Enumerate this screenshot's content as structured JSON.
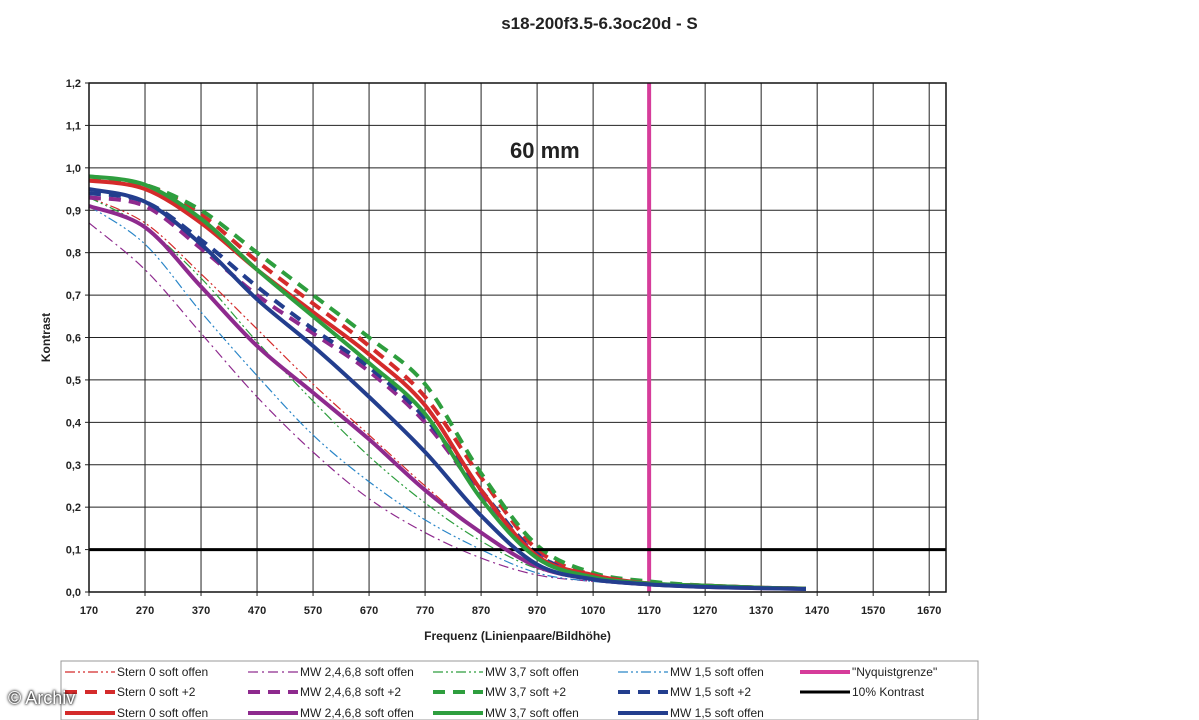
{
  "watermark": "© Archiv",
  "chart_data": {
    "type": "line",
    "title": "s18-200f3.5-6.3oc20d - S",
    "xlabel": "Frequenz (Linienpaare/Bildhöhe)",
    "ylabel": "Kontrast",
    "xlim": [
      170,
      1700
    ],
    "ylim": [
      0,
      1.2
    ],
    "xticks": [
      "170",
      "270",
      "370",
      "470",
      "570",
      "670",
      "770",
      "870",
      "970",
      "1070",
      "1170",
      "1270",
      "1370",
      "1470",
      "1570",
      "1670"
    ],
    "yticks": [
      "0,0",
      "0,1",
      "0,2",
      "0,3",
      "0,4",
      "0,5",
      "0,6",
      "0,7",
      "0,8",
      "0,9",
      "1,0",
      "1,1",
      "1,2"
    ],
    "grid": true,
    "annotation": "60 mm",
    "legend_position": "bottom",
    "series": [
      {
        "name": "Stern 0 soft offen",
        "color": "#d42b2b",
        "style": "dashdotdot",
        "width": 1.2,
        "x": [
          170,
          270,
          370,
          470,
          570,
          670,
          770,
          870,
          970,
          1070,
          1170,
          1270,
          1370,
          1450
        ],
        "y": [
          0.93,
          0.87,
          0.75,
          0.62,
          0.49,
          0.37,
          0.25,
          0.14,
          0.06,
          0.03,
          0.02,
          0.015,
          0.01,
          0.008
        ]
      },
      {
        "name": "MW 2,4,6,8 soft offen",
        "color": "#8e2a8e",
        "style": "dashdot",
        "width": 1.2,
        "x": [
          170,
          270,
          370,
          470,
          570,
          670,
          770,
          870,
          970,
          1070,
          1170,
          1270,
          1370,
          1450
        ],
        "y": [
          0.87,
          0.76,
          0.61,
          0.46,
          0.33,
          0.22,
          0.14,
          0.08,
          0.04,
          0.025,
          0.015,
          0.01,
          0.008,
          0.006
        ]
      },
      {
        "name": "MW 3,7 soft offen",
        "color": "#2e9e3e",
        "style": "dashdotdot",
        "width": 1.2,
        "x": [
          170,
          270,
          370,
          470,
          570,
          670,
          770,
          870,
          970,
          1070,
          1170,
          1270,
          1370,
          1450
        ],
        "y": [
          0.93,
          0.86,
          0.74,
          0.59,
          0.45,
          0.32,
          0.21,
          0.12,
          0.055,
          0.03,
          0.02,
          0.015,
          0.01,
          0.008
        ]
      },
      {
        "name": "MW 1,5 soft offen",
        "color": "#2a86c8",
        "style": "dashdotdot",
        "width": 1.2,
        "x": [
          170,
          270,
          370,
          470,
          570,
          670,
          770,
          870,
          970,
          1070,
          1170,
          1270,
          1370,
          1450
        ],
        "y": [
          0.91,
          0.82,
          0.66,
          0.51,
          0.37,
          0.26,
          0.17,
          0.1,
          0.045,
          0.025,
          0.018,
          0.012,
          0.009,
          0.007
        ]
      },
      {
        "name": "\"Nyquistgrenze\"",
        "color": "#d63c9a",
        "style": "solid",
        "width": 4,
        "x": [
          1170,
          1170
        ],
        "y": [
          0,
          1.2
        ]
      },
      {
        "name": "Stern 0 soft +2",
        "color": "#d42b2b",
        "style": "dash",
        "width": 4,
        "x": [
          170,
          270,
          370,
          470,
          570,
          670,
          770,
          870,
          970,
          1070,
          1170,
          1270,
          1370,
          1450
        ],
        "y": [
          0.97,
          0.96,
          0.89,
          0.78,
          0.68,
          0.58,
          0.46,
          0.27,
          0.1,
          0.04,
          0.02,
          0.015,
          0.01,
          0.008
        ]
      },
      {
        "name": "MW 2,4,6,8 soft +2",
        "color": "#8e2a8e",
        "style": "dash",
        "width": 4,
        "x": [
          170,
          270,
          370,
          470,
          570,
          670,
          770,
          870,
          970,
          1070,
          1170,
          1270,
          1370,
          1450
        ],
        "y": [
          0.93,
          0.91,
          0.81,
          0.7,
          0.61,
          0.52,
          0.4,
          0.23,
          0.09,
          0.035,
          0.02,
          0.015,
          0.01,
          0.008
        ]
      },
      {
        "name": "MW 3,7 soft +2",
        "color": "#2e9e3e",
        "style": "dash",
        "width": 4,
        "x": [
          170,
          270,
          370,
          470,
          570,
          670,
          770,
          870,
          970,
          1070,
          1170,
          1270,
          1370,
          1450
        ],
        "y": [
          0.98,
          0.96,
          0.9,
          0.8,
          0.7,
          0.6,
          0.49,
          0.28,
          0.11,
          0.045,
          0.025,
          0.015,
          0.01,
          0.008
        ]
      },
      {
        "name": "MW 1,5 soft +2",
        "color": "#233e8e",
        "style": "dash",
        "width": 4,
        "x": [
          170,
          270,
          370,
          470,
          570,
          670,
          770,
          870,
          970,
          1070,
          1170,
          1270,
          1370,
          1450
        ],
        "y": [
          0.94,
          0.92,
          0.83,
          0.72,
          0.62,
          0.53,
          0.41,
          0.24,
          0.09,
          0.035,
          0.02,
          0.015,
          0.01,
          0.008
        ]
      },
      {
        "name": "10% Kontrast",
        "color": "#000000",
        "style": "solid",
        "width": 3,
        "x": [
          170,
          1700
        ],
        "y": [
          0.1,
          0.1
        ]
      },
      {
        "name": "Stern 0 soft offen",
        "color": "#d42b2b",
        "style": "solid",
        "width": 4,
        "x": [
          170,
          270,
          370,
          470,
          570,
          670,
          770,
          870,
          970,
          1070,
          1170,
          1270,
          1370,
          1450
        ],
        "y": [
          0.97,
          0.95,
          0.87,
          0.76,
          0.66,
          0.56,
          0.44,
          0.24,
          0.085,
          0.04,
          0.02,
          0.015,
          0.01,
          0.008
        ]
      },
      {
        "name": "MW 2,4,6,8 soft offen",
        "color": "#8e2a8e",
        "style": "solid",
        "width": 4,
        "x": [
          170,
          270,
          370,
          470,
          570,
          670,
          770,
          870,
          970,
          1070,
          1170,
          1270,
          1370,
          1450
        ],
        "y": [
          0.91,
          0.86,
          0.72,
          0.58,
          0.47,
          0.36,
          0.24,
          0.14,
          0.06,
          0.03,
          0.018,
          0.012,
          0.009,
          0.007
        ]
      },
      {
        "name": "MW 3,7 soft offen",
        "color": "#2e9e3e",
        "style": "solid",
        "width": 4,
        "x": [
          170,
          270,
          370,
          470,
          570,
          670,
          770,
          870,
          970,
          1070,
          1170,
          1270,
          1370,
          1450
        ],
        "y": [
          0.98,
          0.96,
          0.88,
          0.76,
          0.65,
          0.54,
          0.42,
          0.22,
          0.08,
          0.035,
          0.02,
          0.015,
          0.01,
          0.008
        ]
      },
      {
        "name": "MW 1,5 soft offen",
        "color": "#233e8e",
        "style": "solid",
        "width": 4,
        "x": [
          170,
          270,
          370,
          470,
          570,
          670,
          770,
          870,
          970,
          1070,
          1170,
          1270,
          1370,
          1450
        ],
        "y": [
          0.95,
          0.92,
          0.82,
          0.69,
          0.58,
          0.46,
          0.33,
          0.18,
          0.065,
          0.03,
          0.018,
          0.012,
          0.009,
          0.007
        ]
      }
    ]
  }
}
